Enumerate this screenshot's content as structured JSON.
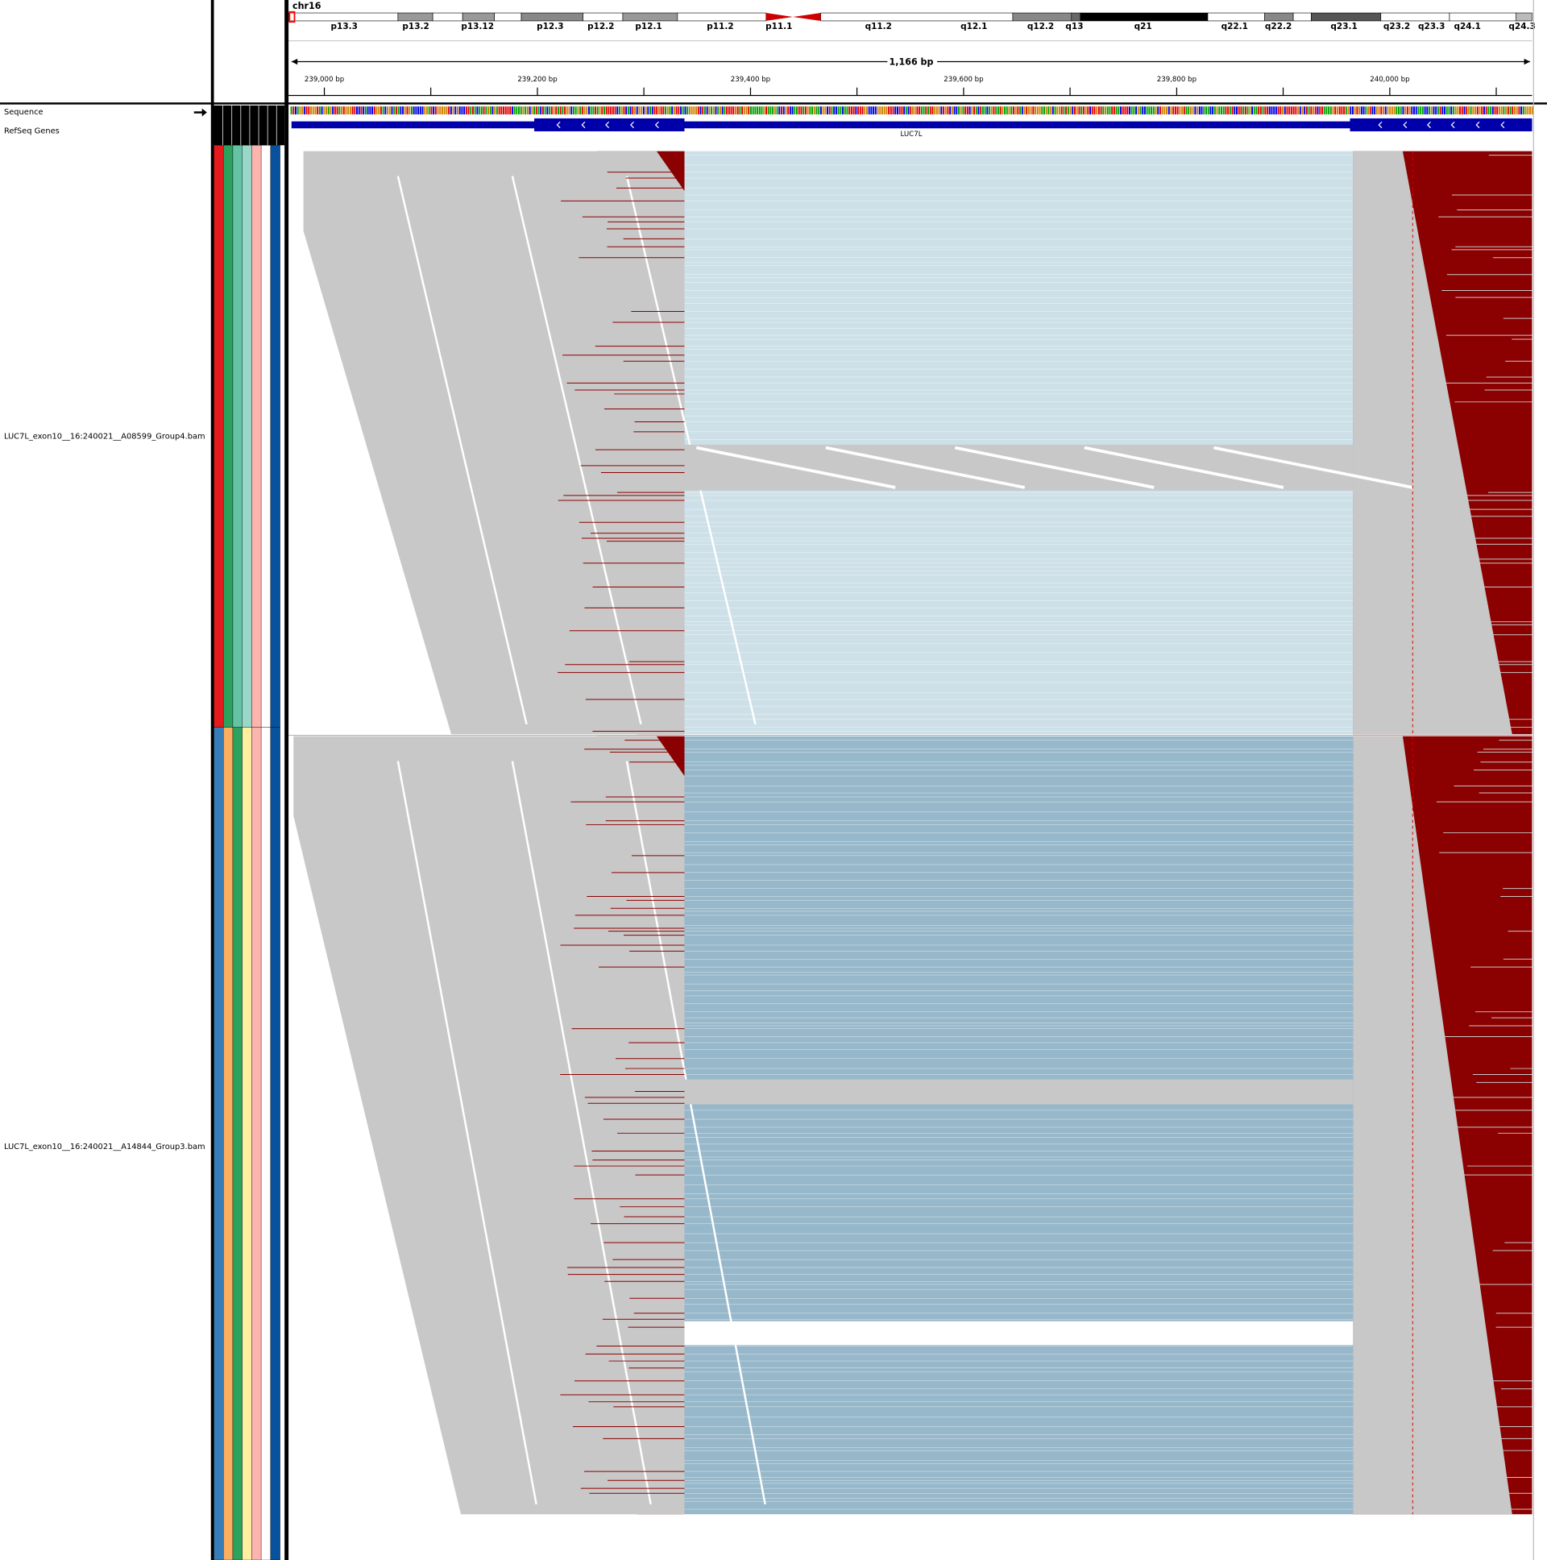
{
  "ideogram": {
    "chromosome": "chr16",
    "bands": [
      "p13.3",
      "p13.2",
      "p13.12",
      "p12.3",
      "p12.2",
      "p12.1",
      "p11.2",
      "p11.1",
      "q11.2",
      "q12.1",
      "q12.2",
      "q13",
      "q21",
      "q22.1",
      "q22.2",
      "q23.1",
      "q23.2",
      "q23.3",
      "q24.1",
      "q24.3"
    ]
  },
  "ruler": {
    "span": "1,166 bp",
    "ticks": [
      "239,000 bp",
      "239,200 bp",
      "239,400 bp",
      "239,600 bp",
      "239,800 bp",
      "240,000 bp"
    ]
  },
  "tracks": {
    "sequence": "Sequence",
    "refseq": "RefSeq Genes",
    "gene": "LUC7L",
    "alignments": [
      "LUC7L_exon10__16:240021__A08599_Group4.bam",
      "LUC7L_exon10__16:240021__A14844_Group3.bam"
    ]
  }
}
